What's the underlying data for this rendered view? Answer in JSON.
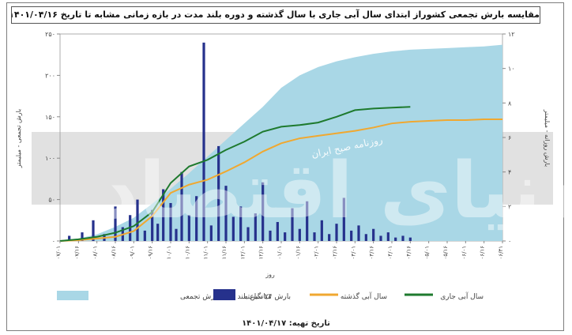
{
  "chart_data": {
    "type": "bar",
    "title": "مقایسه بارش تجمعی کشوراز ابتدای سال آبی جاری با سال گذشته و دوره بلند مدت در بازه زمانی مشابه تا تاریخ ۱۴۰۱/۰۴/۱۶",
    "xlabel": "روز",
    "ylabel_left": "بارش تجمعی - میلیمتر",
    "ylabel_right": "بارش روزانه - میلیمتر",
    "ylim_left": [
      0,
      250
    ],
    "ylim_right": [
      0,
      12
    ],
    "yticks_left": [
      "۰",
      "۵۰",
      "۱۰۰",
      "۱۵۰",
      "۲۰۰",
      "۲۵۰"
    ],
    "yticks_right": [
      "۰",
      "۲",
      "۴",
      "۶",
      "۸",
      "۱۰",
      "۱۲"
    ],
    "xticks": [
      "۰۷/۰۱",
      "۰۷/۱۶",
      "۰۸/۰۱",
      "۰۸/۱۶",
      "۰۹/۰۱",
      "۰۹/۱۶",
      "۱۰/۰۱",
      "۱۰/۱۶",
      "۱۱/۰۱",
      "۱۱/۱۶",
      "۱۲/۰۱",
      "۱۲/۱۶",
      "۰۱/۰۱",
      "۰۱/۱۶",
      "۰۲/۰۱",
      "۰۲/۱۶",
      "۰۳/۰۱",
      "۰۳/۱۶",
      "۰۴/۰۱",
      "۰۴/۱۶",
      "۰۵/۰۱",
      "۰۵/۱۶",
      "۰۶/۰۱",
      "۰۶/۱۶",
      "۰۶/۳۱"
    ],
    "series": [
      {
        "name": "میانگین بلند مدت بارش تجمعی",
        "type": "area",
        "color": "#a9d7e6",
        "x": [
          0,
          1,
          2,
          3,
          4,
          5,
          6,
          7,
          8,
          9,
          10,
          11,
          12,
          13,
          14,
          15,
          16,
          17,
          18,
          19,
          20,
          21,
          22,
          23,
          24
        ],
        "values": [
          1,
          3,
          8,
          17,
          28,
          45,
          63,
          82,
          102,
          122,
          142,
          162,
          185,
          200,
          210,
          217,
          222,
          226,
          229,
          231,
          232,
          233,
          234,
          235,
          237
        ]
      },
      {
        "name": "سال آبی گذشته",
        "type": "line",
        "color": "#f0a830",
        "x": [
          0,
          1,
          2,
          3,
          4,
          5,
          6,
          7,
          8,
          9,
          10,
          11,
          12,
          13,
          14,
          15,
          16,
          17,
          18,
          19,
          20,
          21,
          22,
          23,
          24
        ],
        "values": [
          0,
          1,
          3,
          5,
          12,
          30,
          58,
          68,
          74,
          84,
          95,
          108,
          118,
          124,
          127,
          130,
          133,
          137,
          142,
          144,
          145,
          146,
          146,
          147,
          147
        ]
      },
      {
        "name": "سال آبی جاری",
        "type": "line",
        "color": "#1e7a2e",
        "x": [
          0,
          1,
          2,
          3,
          4,
          5,
          6,
          7,
          8,
          9,
          10,
          11,
          12,
          13,
          14,
          15,
          16,
          17,
          18,
          19
        ],
        "values": [
          0,
          2,
          5,
          10,
          18,
          35,
          70,
          90,
          98,
          110,
          120,
          132,
          138,
          140,
          143,
          150,
          158,
          160,
          161,
          162
        ]
      },
      {
        "name": "بارش ۲۴ ساعته",
        "type": "bar",
        "color": "#26318c",
        "x": [
          0.5,
          1.2,
          1.8,
          2.4,
          3.0,
          3.4,
          3.8,
          4.2,
          4.6,
          5.0,
          5.3,
          5.6,
          6.0,
          6.3,
          6.6,
          7.0,
          7.4,
          7.8,
          8.2,
          8.6,
          9.0,
          9.4,
          9.8,
          10.2,
          10.6,
          11.0,
          11.4,
          11.8,
          12.2,
          12.6,
          13.0,
          13.4,
          13.8,
          14.2,
          14.6,
          15.0,
          15.4,
          15.8,
          16.2,
          16.6,
          17.0,
          17.4,
          17.8,
          18.2,
          18.6,
          19.0
        ],
        "values": [
          0.3,
          0.5,
          1.2,
          0.4,
          2.0,
          0.8,
          1.5,
          2.4,
          0.6,
          1.8,
          1.0,
          3.0,
          2.2,
          0.7,
          4.0,
          1.5,
          2.6,
          11.5,
          0.9,
          5.5,
          3.2,
          1.4,
          2.0,
          0.8,
          1.6,
          3.4,
          0.6,
          1.1,
          0.5,
          1.9,
          0.7,
          2.3,
          0.5,
          1.2,
          0.4,
          1.0,
          2.5,
          0.6,
          0.9,
          0.4,
          0.7,
          0.3,
          0.5,
          0.2,
          0.3,
          0.2
        ]
      }
    ],
    "legend_position": "bottom",
    "grid": false
  },
  "date_text": "تاریخ تهیه: ۱۴۰۱/۰۴/۱۷",
  "watermark": {
    "arabic_logo_text": "دنیای اقتصاد",
    "stamp_text": "روزنامه صبح ایران"
  }
}
